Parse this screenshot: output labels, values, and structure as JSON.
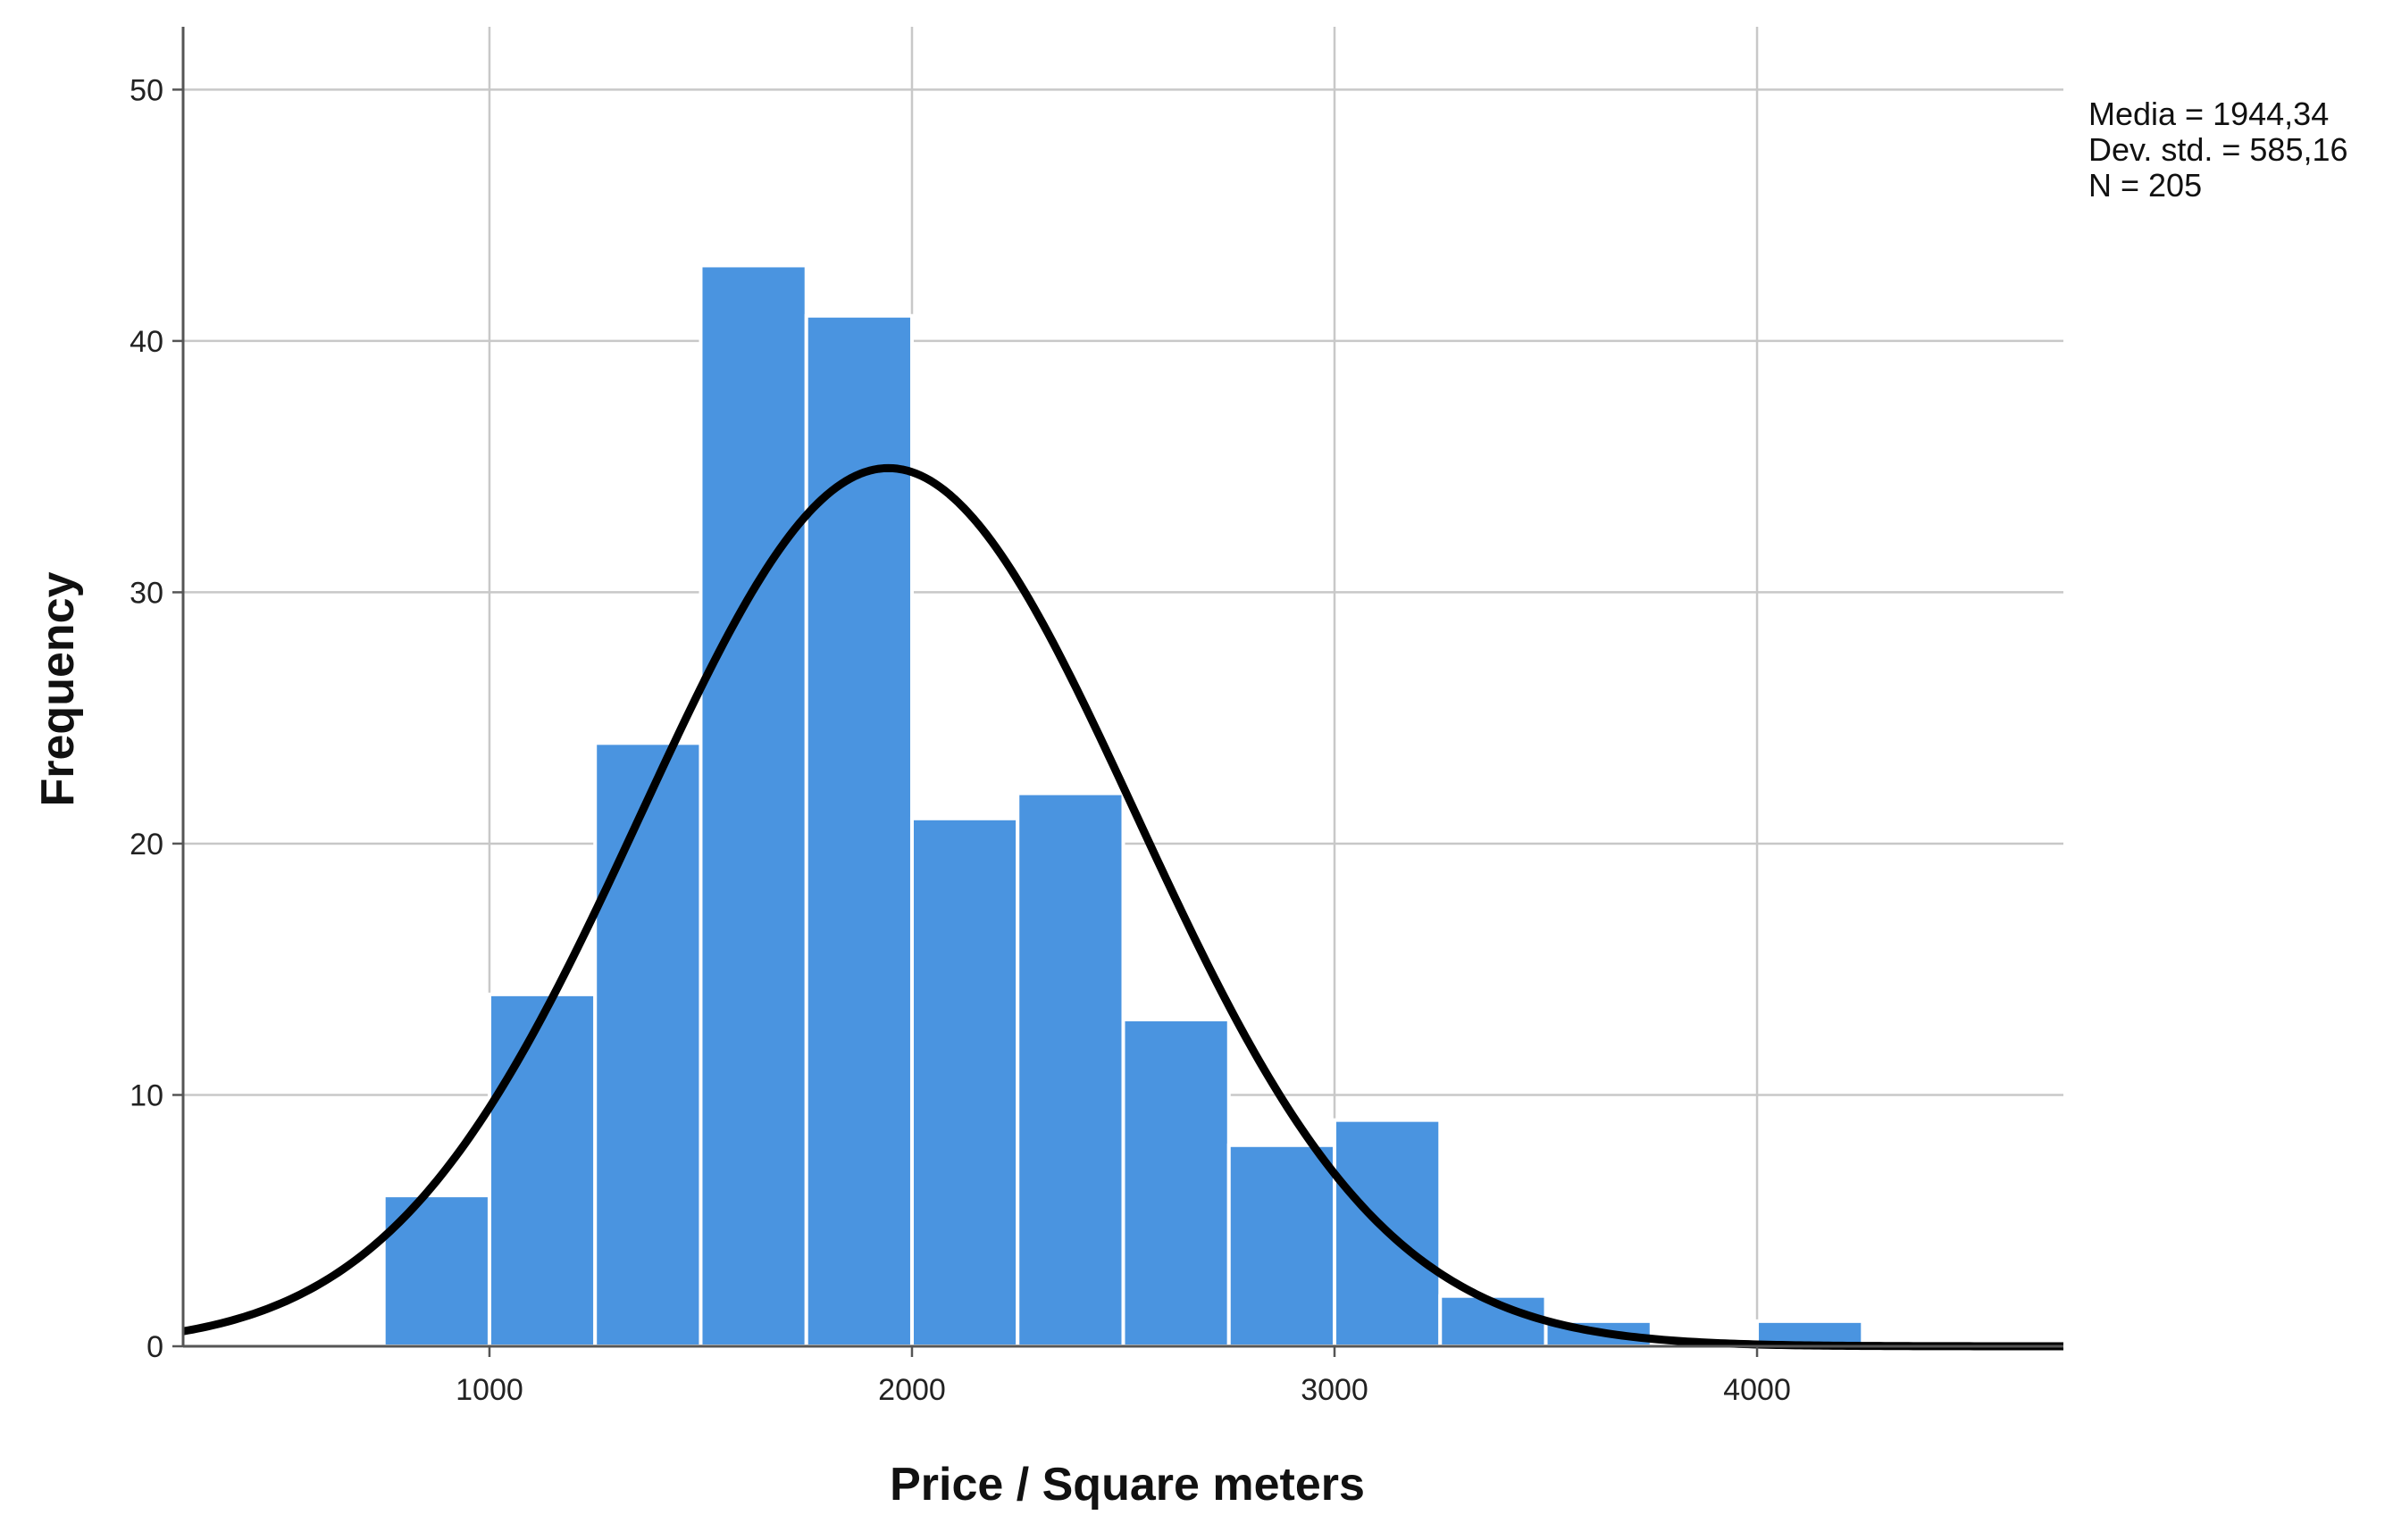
{
  "chart_data": {
    "type": "bar",
    "subtype": "histogram",
    "bins": [
      {
        "x0": 750,
        "x1": 1000,
        "count": 6
      },
      {
        "x0": 1000,
        "x1": 1250,
        "count": 14
      },
      {
        "x0": 1250,
        "x1": 1500,
        "count": 24
      },
      {
        "x0": 1500,
        "x1": 1750,
        "count": 43
      },
      {
        "x0": 1750,
        "x1": 2000,
        "count": 41
      },
      {
        "x0": 2000,
        "x1": 2250,
        "count": 21
      },
      {
        "x0": 2250,
        "x1": 2500,
        "count": 22
      },
      {
        "x0": 2500,
        "x1": 2750,
        "count": 13
      },
      {
        "x0": 2750,
        "x1": 3000,
        "count": 8
      },
      {
        "x0": 3000,
        "x1": 3250,
        "count": 9
      },
      {
        "x0": 3250,
        "x1": 3500,
        "count": 2
      },
      {
        "x0": 3500,
        "x1": 3750,
        "count": 1
      },
      {
        "x0": 3750,
        "x1": 4000,
        "count": 0
      },
      {
        "x0": 4000,
        "x1": 4250,
        "count": 1
      }
    ],
    "normal_curve": {
      "mean": 1944.34,
      "sd": 585.16,
      "n": 205,
      "bin_width": 250
    },
    "xlabel": "Price / Square meters",
    "ylabel": "Frequency",
    "xlim": [
      275,
      4725
    ],
    "ylim": [
      0,
      52.5
    ],
    "x_ticks": [
      1000,
      2000,
      3000,
      4000
    ],
    "y_ticks": [
      0,
      10,
      20,
      30,
      40,
      50
    ],
    "x_tick_labels": [
      "1000",
      "2000",
      "3000",
      "4000"
    ],
    "y_tick_labels": [
      "0",
      "10",
      "20",
      "30",
      "40",
      "50"
    ],
    "grid": true,
    "stats": [
      "Media = 1944,34",
      "Dev. std. = 585,16",
      "N = 205"
    ],
    "stats_placement": "top-right",
    "colors": {
      "bar": "#4a94e0",
      "curve": "#000000",
      "grid": "#c8c8c8",
      "axis": "#555555"
    }
  }
}
